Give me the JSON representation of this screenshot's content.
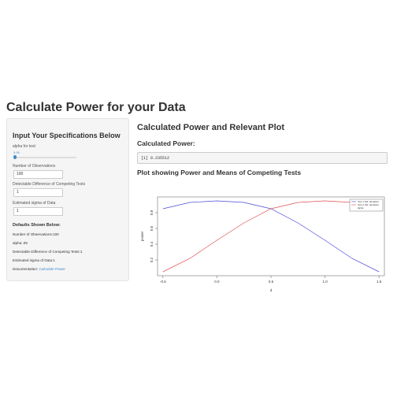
{
  "header": {
    "title": "Calculate Power for your Data"
  },
  "sidebar": {
    "heading": "Input Your Specifications Below",
    "alpha_label": "alpha for test",
    "alpha_value": "0.05",
    "obs_label": "Number of Observations",
    "obs_value": "100",
    "diff_label": "Detectable Difference of Competing Tests",
    "diff_value": "1",
    "sigma_label": "Estimated sigma of Data",
    "sigma_value": "1",
    "defaults_heading": "Defaults Shown Below:",
    "defaults": [
      "Number of Observations:100",
      "alpha:.05",
      "Detectable Difference of Competing Tests:1",
      "Estimated sigma of Data:1"
    ],
    "doc_label": "Documentation:",
    "doc_link": "Calculate Power"
  },
  "main": {
    "heading": "Calculated Power and Relevant Plot",
    "power_heading": "Calculated Power:",
    "power_output": "[1] 0.235512",
    "plot_heading": "Plot showing Power and Means of Competing Tests"
  },
  "chart_data": {
    "type": "line",
    "x_label": "d",
    "y_label": "power",
    "x": [
      -0.5,
      -0.25,
      0,
      0.25,
      0.5,
      0.75,
      1,
      1.25,
      1.5
    ],
    "series": [
      {
        "name": "Test 1 Std. deviation",
        "color": "#4a4ad8",
        "values": [
          0.85,
          0.93,
          0.95,
          0.93,
          0.85,
          0.67,
          0.45,
          0.22,
          0.05
        ]
      },
      {
        "name": "Test 2 Std. deviation",
        "color": "#e05050",
        "values": [
          0.05,
          0.22,
          0.45,
          0.67,
          0.85,
          0.93,
          0.95,
          0.93,
          0.85
        ]
      }
    ],
    "legend_extra": "alpha",
    "xlim": [
      -0.55,
      1.55
    ],
    "ylim": [
      0,
      1
    ],
    "xticks": [
      -0.5,
      {
        "value": 0,
        "label": "0.0"
      },
      0.5,
      {
        "value": 1,
        "label": "1.0"
      },
      1.5
    ],
    "yticks": [
      0.2,
      0.4,
      0.6,
      0.8
    ],
    "legend": "top-right"
  }
}
